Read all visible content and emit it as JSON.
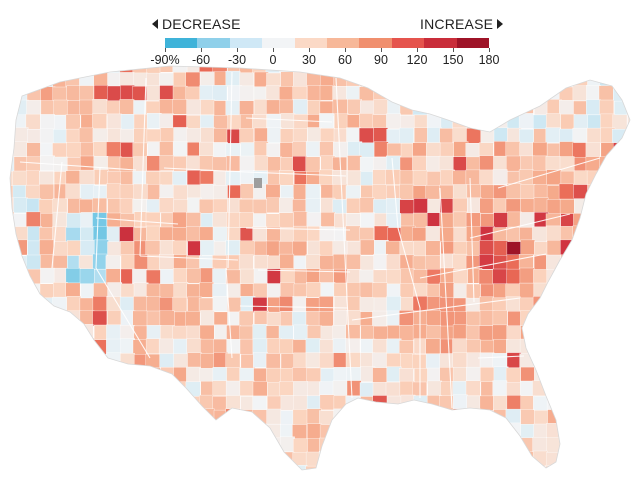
{
  "legend": {
    "decrease_label": "DECREASE",
    "increase_label": "INCREASE",
    "ticks": [
      "-90%",
      "-60",
      "-30",
      "0",
      "30",
      "60",
      "90",
      "120",
      "150",
      "180"
    ],
    "colors": [
      "#3fb3d9",
      "#8fd0ea",
      "#cfe8f6",
      "#f2f4f6",
      "#fbd9c6",
      "#f7b899",
      "#f08f6e",
      "#e5544d",
      "#c92d3a",
      "#9e1327"
    ]
  },
  "map": {
    "region": "Contiguous United States (counties)",
    "color_scale": {
      "min": -90,
      "max": 180,
      "unit": "%",
      "negative_color": "#3fb3d9",
      "zero_color": "#f2f4f6",
      "positive_color": "#9e1327",
      "no_data_color": "#9e9e9e"
    }
  }
}
